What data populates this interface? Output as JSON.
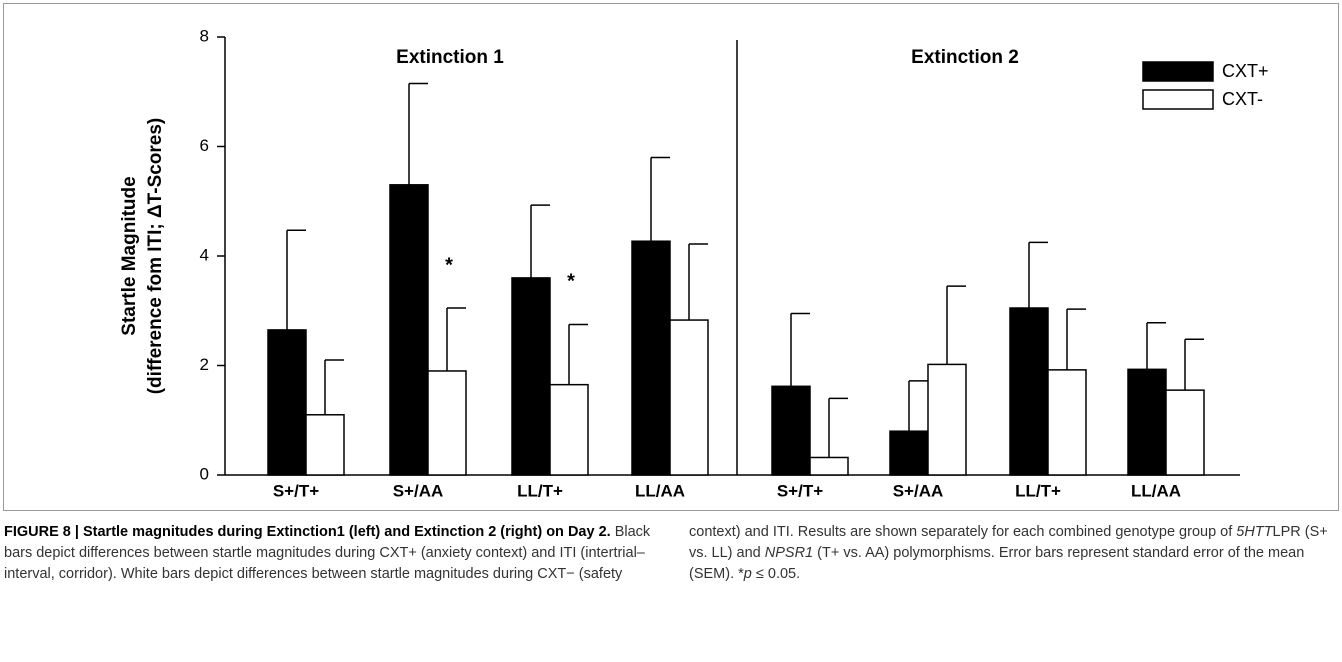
{
  "chart_data": {
    "type": "bar",
    "ylabel": [
      "Startle Magnitude",
      "(difference fom ITI; ΔT-Scores)"
    ],
    "ylim": [
      0,
      8
    ],
    "yticks": [
      0,
      2,
      4,
      6,
      8
    ],
    "series": [
      {
        "name": "CXT+",
        "color": "#000000"
      },
      {
        "name": "CXT-",
        "color": "#ffffff"
      }
    ],
    "panels": [
      {
        "title": "Extinction 1",
        "categories": [
          "S+/T+",
          "S+/AA",
          "LL/T+",
          "LL/AA"
        ],
        "significance": [
          null,
          "*",
          "*",
          null
        ],
        "series": [
          {
            "values": [
              2.65,
              5.3,
              3.6,
              4.27
            ],
            "errors": [
              1.82,
              1.85,
              1.33,
              1.53
            ]
          },
          {
            "values": [
              1.1,
              1.9,
              1.65,
              2.83
            ],
            "errors": [
              1.0,
              1.15,
              1.1,
              1.39
            ]
          }
        ]
      },
      {
        "title": "Extinction 2",
        "categories": [
          "S+/T+",
          "S+/AA",
          "LL/T+",
          "LL/AA"
        ],
        "significance": [
          null,
          null,
          null,
          null
        ],
        "series": [
          {
            "values": [
              1.62,
              0.8,
              3.05,
              1.93
            ],
            "errors": [
              1.33,
              0.92,
              1.2,
              0.85
            ]
          },
          {
            "values": [
              0.32,
              2.02,
              1.92,
              1.55
            ],
            "errors": [
              1.08,
              1.43,
              1.11,
              0.93
            ]
          }
        ]
      }
    ]
  },
  "caption": {
    "title": "FIGURE 8 | Startle magnitudes during Extinction1 (left) and Extinction 2 (right) on Day 2.",
    "parts": [
      " Black bars depict differences between startle magnitudes during CXT+ (anxiety context) and ITI (intertrial–interval, corridor). White bars depict differences between startle magnitudes during CXT− (safety context) and ITI. Results are shown separately for each combined genotype group of ",
      "5HTT",
      "LPR (S+ vs. LL) and ",
      "NPSR1",
      " (T+ vs. AA) polymorphisms. Error bars represent standard error of the mean (SEM). *",
      "p",
      " ≤ 0.05."
    ]
  }
}
